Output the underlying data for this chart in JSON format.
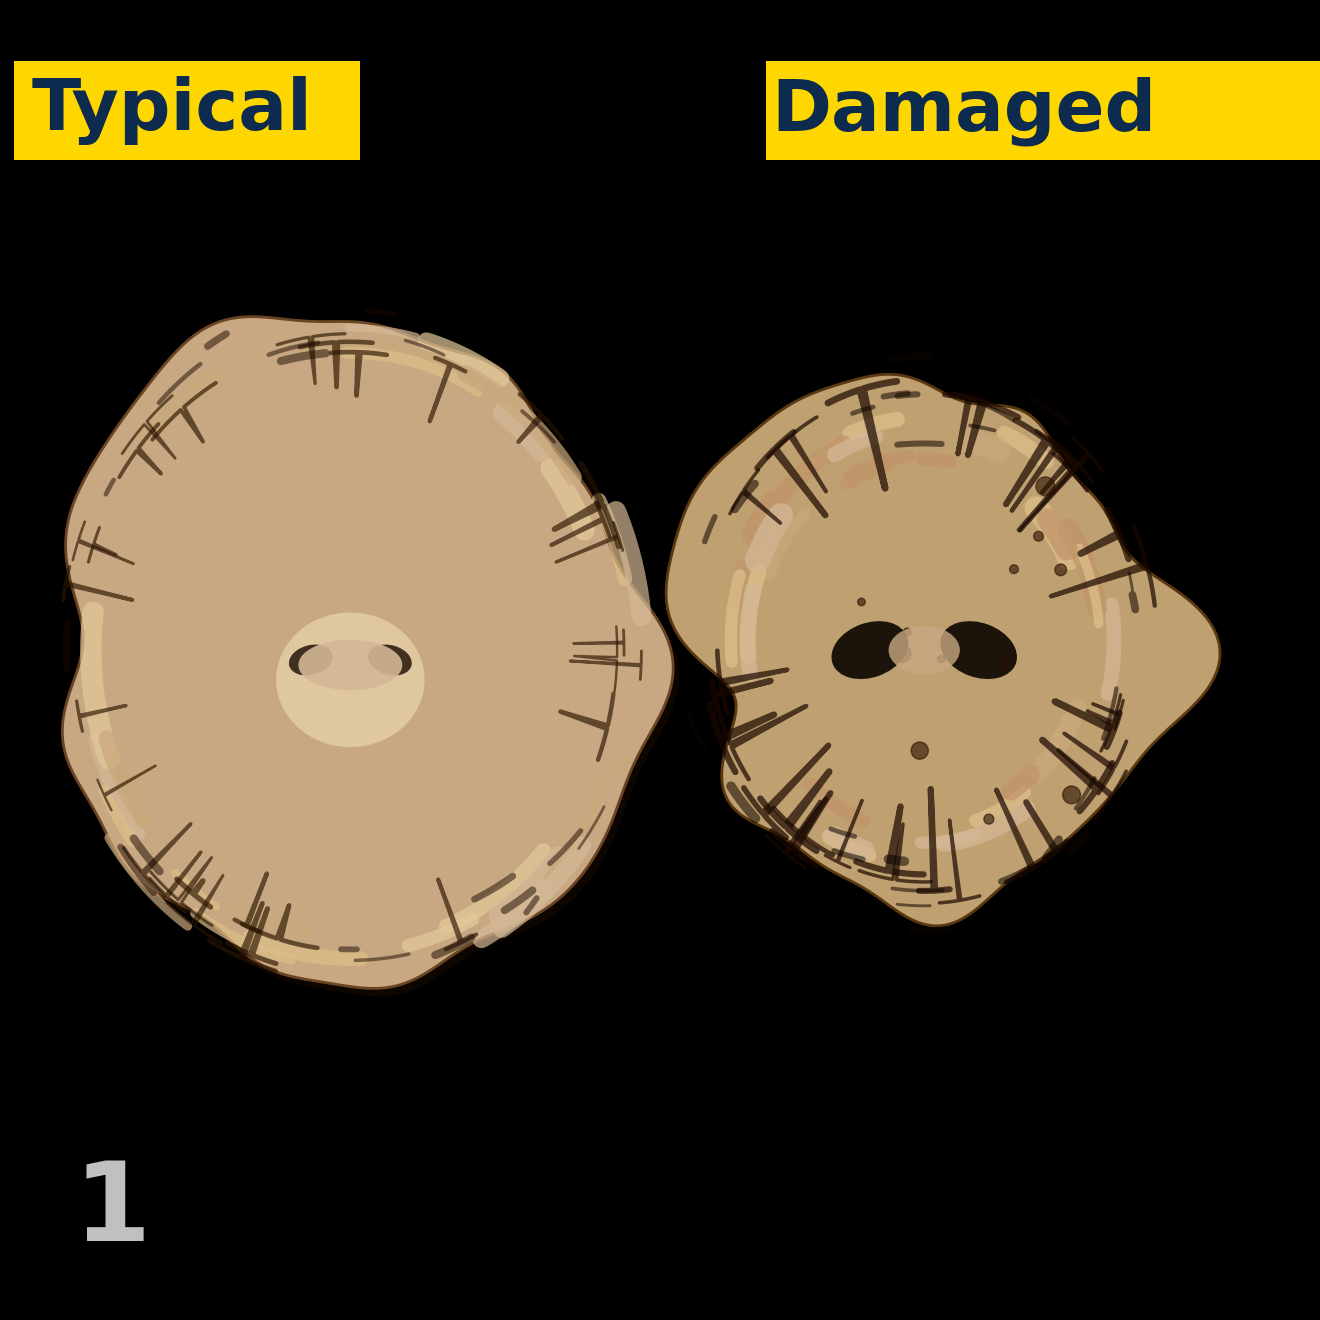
{
  "background_color": "#000000",
  "label_left_text": "Typical",
  "label_right_text": "Damaged",
  "label_bg_color": "#FFD700",
  "label_text_color": "#0D2B4E",
  "label_fontsize": 52,
  "label_fontweight": "bold",
  "number_text": "1",
  "number_color": "#C0C0C0",
  "number_fontsize": 80,
  "brain_color_outer": "#D4B896",
  "brain_color_inner": "#C9A87C",
  "brain_color_dark": "#2A1A0A",
  "brain_sulci_color": "#1A0A00",
  "figsize": [
    13.2,
    13.2
  ],
  "dpi": 100
}
